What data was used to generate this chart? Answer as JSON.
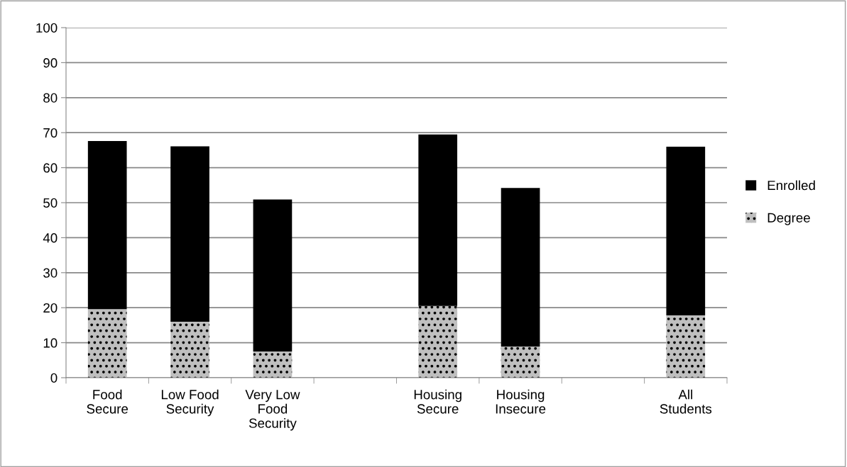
{
  "chart_data": {
    "type": "bar",
    "stacked": true,
    "categories": [
      "Food\nSecure",
      "Low Food\nSecurity",
      "Very Low\nFood\nSecurity",
      null,
      "Housing\nSecure",
      "Housing\nInsecure",
      null,
      "All\nStudents"
    ],
    "series": [
      {
        "name": "Degree",
        "color": "#bfbfbf",
        "values": [
          19.6,
          16.0,
          7.5,
          null,
          20.5,
          8.9,
          null,
          17.8
        ]
      },
      {
        "name": "Enrolled",
        "color": "#000000",
        "values": [
          48.0,
          50.1,
          43.4,
          null,
          49.0,
          45.3,
          null,
          48.2
        ]
      }
    ],
    "ylim": [
      0,
      100
    ],
    "yticks": [
      0,
      10,
      20,
      30,
      40,
      50,
      60,
      70,
      80,
      90,
      100
    ],
    "grid": "y",
    "legend": "right"
  }
}
